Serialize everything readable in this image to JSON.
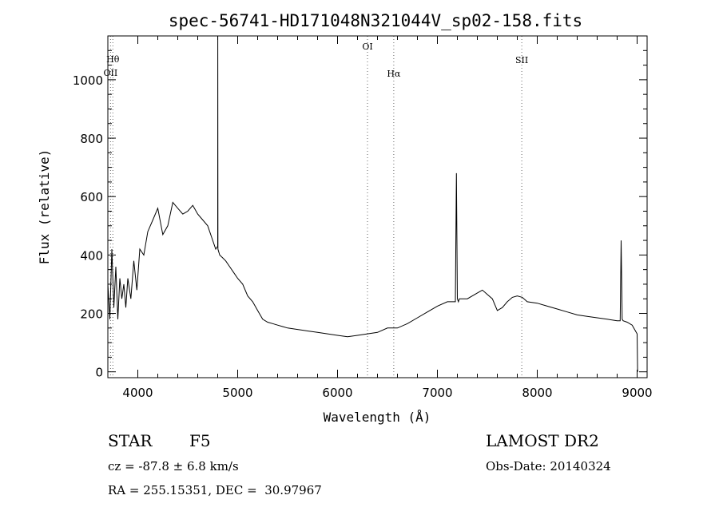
{
  "chart_data": {
    "type": "line",
    "title": "spec-56741-HD171048N321044V_sp02-158.fits",
    "xlabel": "Wavelength (Å)",
    "ylabel": "Flux (relative)",
    "xlim": [
      3700,
      9100
    ],
    "ylim": [
      -20,
      1150
    ],
    "x_ticks": [
      4000,
      5000,
      6000,
      7000,
      8000,
      9000
    ],
    "y_ticks": [
      0,
      200,
      400,
      600,
      800,
      1000
    ],
    "grid": false,
    "series": [
      {
        "x": [
          3700,
          3720,
          3740,
          3760,
          3780,
          3800,
          3820,
          3840,
          3860,
          3880,
          3900,
          3930,
          3960,
          3990,
          4020,
          4060,
          4100,
          4150,
          4200,
          4250,
          4300,
          4350,
          4400,
          4450,
          4500,
          4550,
          4600,
          4650,
          4700,
          4740,
          4780,
          4800,
          4801,
          4802,
          4820,
          4850,
          4880,
          4920,
          4960,
          5000,
          5050,
          5100,
          5150,
          5200,
          5250,
          5300,
          5350,
          5400,
          5450,
          5500,
          5600,
          5700,
          5800,
          5900,
          6000,
          6100,
          6200,
          6300,
          6400,
          6500,
          6600,
          6700,
          6800,
          6900,
          7000,
          7100,
          7180,
          7190,
          7200,
          7210,
          7220,
          7300,
          7400,
          7450,
          7500,
          7550,
          7600,
          7650,
          7700,
          7750,
          7800,
          7850,
          7900,
          8000,
          8100,
          8200,
          8300,
          8400,
          8500,
          8600,
          8700,
          8800,
          8830,
          8840,
          8850,
          8860,
          8900,
          8950,
          9000,
          9005
        ],
        "y": [
          300,
          180,
          420,
          220,
          360,
          180,
          320,
          250,
          300,
          220,
          320,
          250,
          380,
          280,
          420,
          400,
          480,
          520,
          560,
          470,
          500,
          580,
          560,
          540,
          550,
          570,
          540,
          520,
          500,
          460,
          420,
          430,
          1150,
          420,
          400,
          390,
          380,
          360,
          340,
          320,
          300,
          260,
          240,
          210,
          180,
          170,
          165,
          160,
          155,
          150,
          145,
          140,
          135,
          130,
          125,
          120,
          125,
          130,
          135,
          150,
          150,
          165,
          185,
          205,
          225,
          240,
          240,
          680,
          250,
          240,
          250,
          250,
          270,
          280,
          265,
          250,
          210,
          220,
          240,
          255,
          260,
          255,
          240,
          235,
          225,
          215,
          205,
          195,
          190,
          185,
          180,
          175,
          175,
          450,
          180,
          175,
          170,
          160,
          130,
          0
        ]
      }
    ],
    "vlines": [
      {
        "label": "Hθ",
        "x": 3750
      },
      {
        "label": "OII",
        "x": 3727
      },
      {
        "label": "OI",
        "x": 6300
      },
      {
        "label": "Hα",
        "x": 6563
      },
      {
        "label": "SII",
        "x": 7845
      }
    ]
  },
  "info": {
    "object_class": "STAR",
    "subclass": "F5",
    "cz": "cz = -87.8 ± 6.8 km/s",
    "coords": "RA = 255.15351, DEC =  30.97967",
    "survey": "LAMOST DR2",
    "obs_date": "Obs-Date: 20140324"
  }
}
